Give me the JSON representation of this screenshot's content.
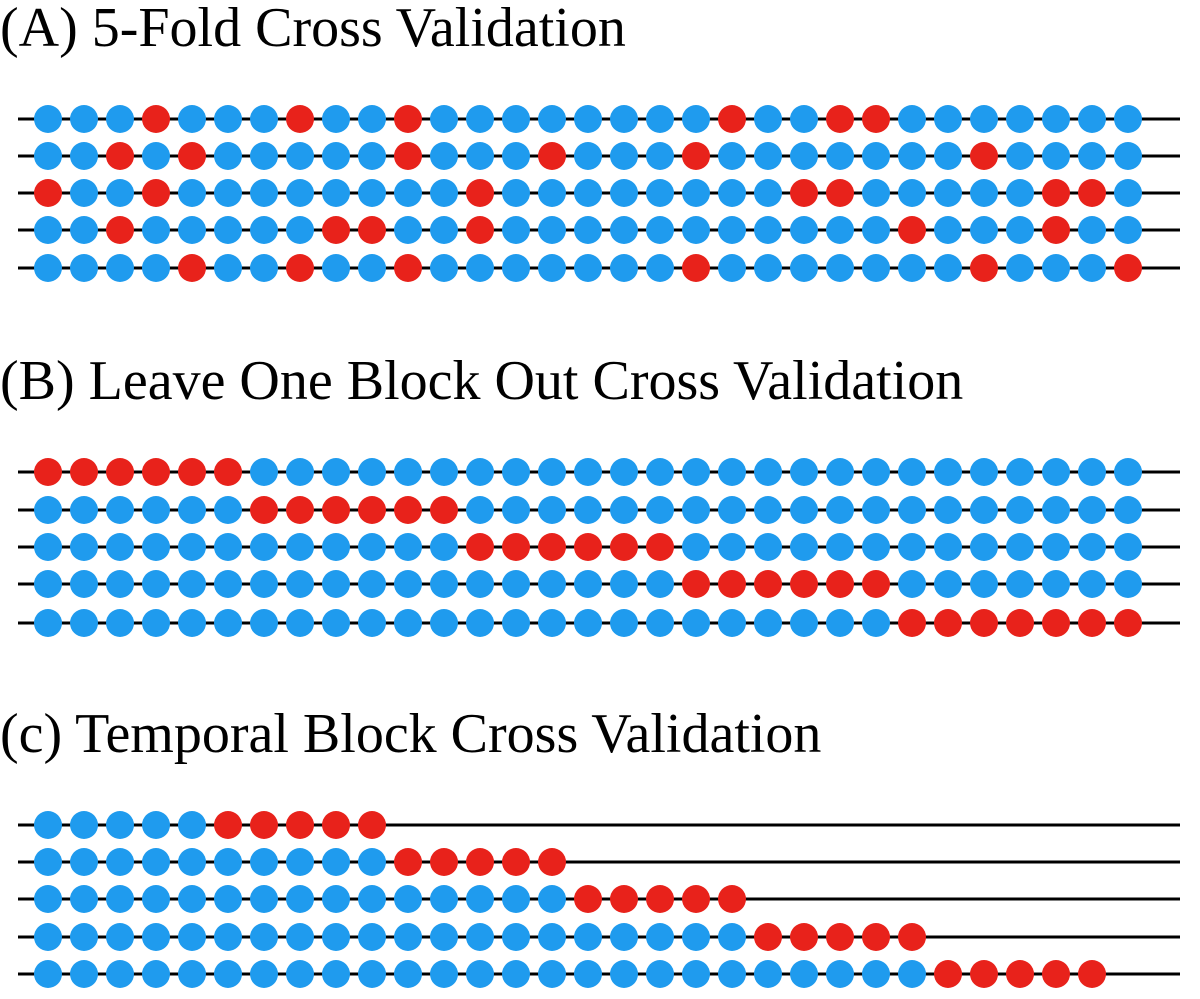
{
  "colors": {
    "train": "#1f9bee",
    "test": "#e8221b",
    "line": "#000000"
  },
  "panels": [
    {
      "title": "(A) 5-Fold Cross Validation",
      "rows": [
        [
          1,
          1,
          1,
          0,
          1,
          1,
          1,
          0,
          1,
          1,
          0,
          1,
          1,
          1,
          1,
          1,
          1,
          1,
          1,
          0,
          1,
          1,
          0,
          0,
          1,
          1,
          1,
          1,
          1,
          1,
          1
        ],
        [
          1,
          1,
          0,
          1,
          0,
          1,
          1,
          1,
          1,
          1,
          0,
          1,
          1,
          1,
          0,
          1,
          1,
          1,
          0,
          1,
          1,
          1,
          1,
          1,
          1,
          1,
          0,
          1,
          1,
          1,
          1
        ],
        [
          0,
          1,
          1,
          0,
          1,
          1,
          1,
          1,
          1,
          1,
          1,
          1,
          0,
          1,
          1,
          1,
          1,
          1,
          1,
          1,
          1,
          0,
          0,
          1,
          1,
          1,
          1,
          1,
          0,
          0,
          1
        ],
        [
          1,
          1,
          0,
          1,
          1,
          1,
          1,
          1,
          0,
          0,
          1,
          1,
          0,
          1,
          1,
          1,
          1,
          1,
          1,
          1,
          1,
          1,
          1,
          1,
          0,
          1,
          1,
          1,
          0,
          1,
          1
        ],
        [
          1,
          1,
          1,
          1,
          0,
          1,
          1,
          0,
          1,
          1,
          0,
          1,
          1,
          1,
          1,
          1,
          1,
          1,
          0,
          1,
          1,
          1,
          1,
          1,
          1,
          1,
          0,
          1,
          1,
          1,
          0
        ]
      ]
    },
    {
      "title": "(B) Leave One Block Out Cross Validation",
      "rows": [
        [
          0,
          0,
          0,
          0,
          0,
          0,
          1,
          1,
          1,
          1,
          1,
          1,
          1,
          1,
          1,
          1,
          1,
          1,
          1,
          1,
          1,
          1,
          1,
          1,
          1,
          1,
          1,
          1,
          1,
          1,
          1
        ],
        [
          1,
          1,
          1,
          1,
          1,
          1,
          0,
          0,
          0,
          0,
          0,
          0,
          1,
          1,
          1,
          1,
          1,
          1,
          1,
          1,
          1,
          1,
          1,
          1,
          1,
          1,
          1,
          1,
          1,
          1,
          1
        ],
        [
          1,
          1,
          1,
          1,
          1,
          1,
          1,
          1,
          1,
          1,
          1,
          1,
          0,
          0,
          0,
          0,
          0,
          0,
          1,
          1,
          1,
          1,
          1,
          1,
          1,
          1,
          1,
          1,
          1,
          1,
          1
        ],
        [
          1,
          1,
          1,
          1,
          1,
          1,
          1,
          1,
          1,
          1,
          1,
          1,
          1,
          1,
          1,
          1,
          1,
          1,
          0,
          0,
          0,
          0,
          0,
          0,
          1,
          1,
          1,
          1,
          1,
          1,
          1
        ],
        [
          1,
          1,
          1,
          1,
          1,
          1,
          1,
          1,
          1,
          1,
          1,
          1,
          1,
          1,
          1,
          1,
          1,
          1,
          1,
          1,
          1,
          1,
          1,
          1,
          0,
          0,
          0,
          0,
          0,
          0,
          0
        ]
      ]
    },
    {
      "title": "(c) Temporal Block Cross Validation",
      "rows": [
        [
          1,
          1,
          1,
          1,
          1,
          0,
          0,
          0,
          0,
          0
        ],
        [
          1,
          1,
          1,
          1,
          1,
          1,
          1,
          1,
          1,
          1,
          0,
          0,
          0,
          0,
          0
        ],
        [
          1,
          1,
          1,
          1,
          1,
          1,
          1,
          1,
          1,
          1,
          1,
          1,
          1,
          1,
          1,
          0,
          0,
          0,
          0,
          0
        ],
        [
          1,
          1,
          1,
          1,
          1,
          1,
          1,
          1,
          1,
          1,
          1,
          1,
          1,
          1,
          1,
          1,
          1,
          1,
          1,
          1,
          0,
          0,
          0,
          0,
          0
        ],
        [
          1,
          1,
          1,
          1,
          1,
          1,
          1,
          1,
          1,
          1,
          1,
          1,
          1,
          1,
          1,
          1,
          1,
          1,
          1,
          1,
          1,
          1,
          1,
          1,
          1,
          0,
          0,
          0,
          0,
          0
        ]
      ]
    }
  ]
}
